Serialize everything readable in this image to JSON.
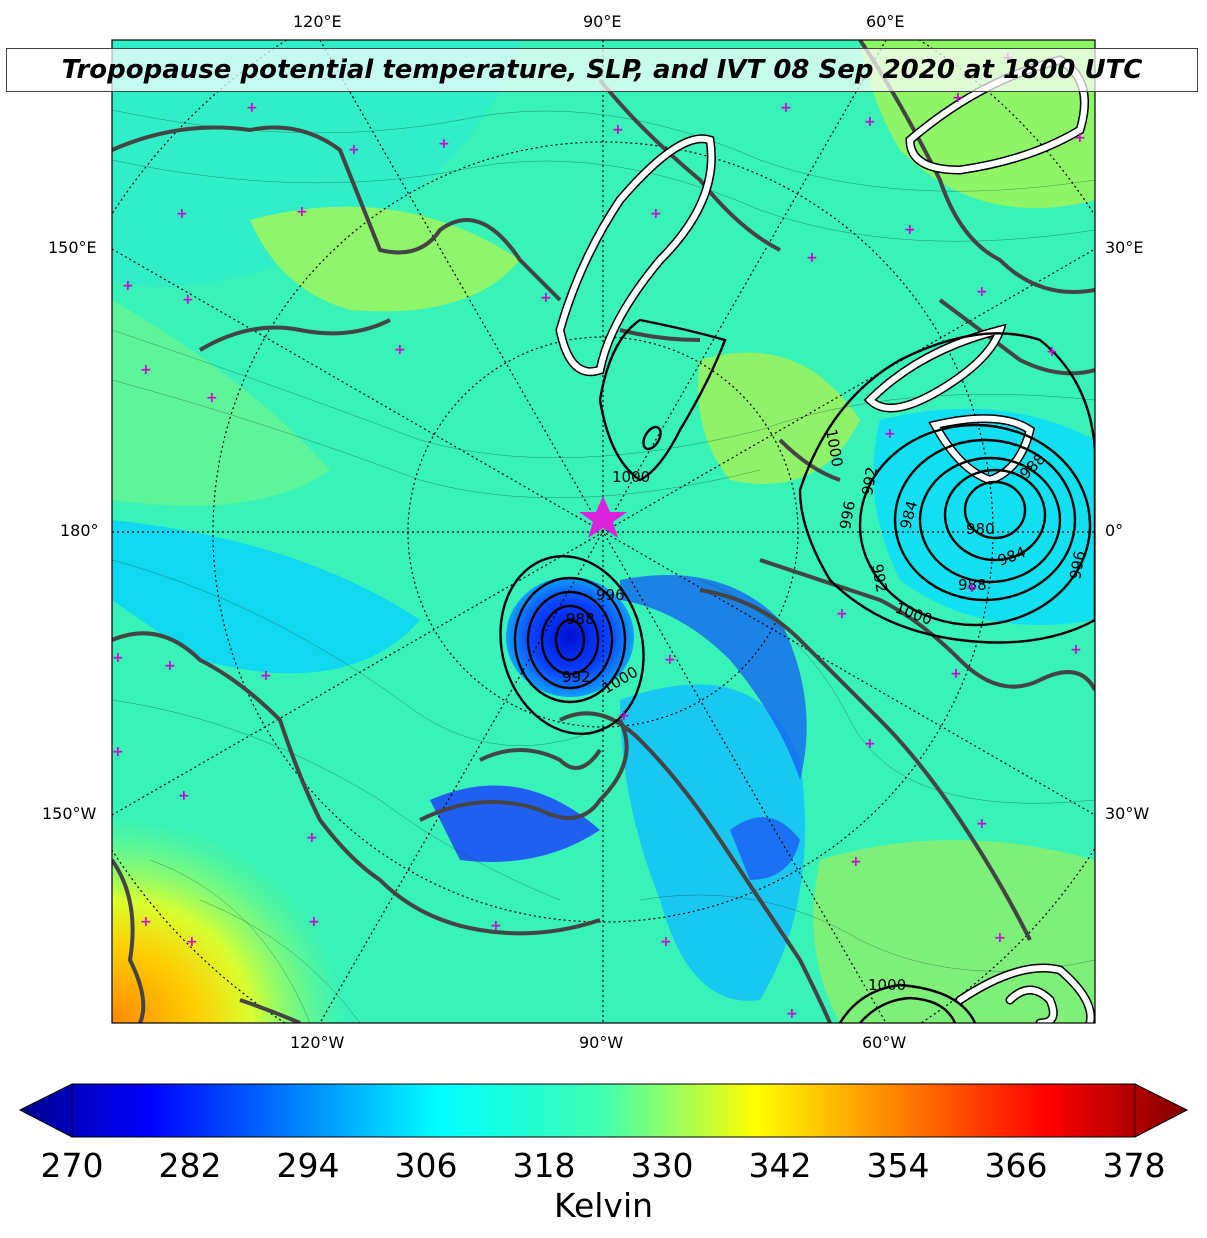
{
  "title": "Tropopause potential temperature, SLP, and IVT 08 Sep 2020 at 1800 UTC",
  "lon_labels": {
    "top": [
      "120°E",
      "90°E",
      "60°E"
    ],
    "bottom": [
      "120°W",
      "90°W",
      "60°W"
    ],
    "left": [
      "150°E",
      "180°",
      "150°W"
    ],
    "right": [
      "30°E",
      "0°",
      "30°W"
    ]
  },
  "slp_contour_labels": {
    "arctic_low": [
      "996",
      "988",
      "992",
      "1000"
    ],
    "east_low": [
      "1000",
      "992",
      "996",
      "984",
      "980",
      "988",
      "984",
      "988",
      "996",
      "992",
      "1000"
    ],
    "north_high": [
      "1000"
    ],
    "southeast": [
      "1000"
    ]
  },
  "colorbar": {
    "ticks": [
      "270",
      "282",
      "294",
      "306",
      "318",
      "330",
      "342",
      "354",
      "366",
      "378"
    ],
    "label": "Kelvin",
    "min": 270,
    "max": 378,
    "colormap": "jet",
    "extend": "both"
  },
  "colors": {
    "background_field": "#33f0c0",
    "coastline": "#444444",
    "slp_contour": "#000000",
    "ivt_contour": "#ffffff",
    "marker": "#cc00cc"
  }
}
